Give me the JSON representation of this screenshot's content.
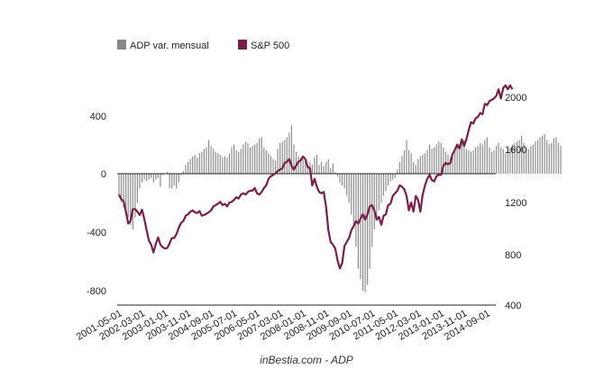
{
  "chart_data": {
    "type": "bar",
    "credit": "inBestia.com - ADP",
    "legend_position": "top-left",
    "grid": false,
    "x": {
      "start": "2001-05",
      "end": "2014-12",
      "tick_labels": [
        "2001-05-01",
        "2002-03-01",
        "2003-01-01",
        "2003-11-01",
        "2004-09-01",
        "2005-07-01",
        "2006-05-01",
        "2007-03-01",
        "2008-01-01",
        "2008-11-01",
        "2009-09-01",
        "2010-07-01",
        "2011-05-01",
        "2012-03-01",
        "2013-01-01",
        "2013-11-01",
        "2014-09-01"
      ]
    },
    "y_left": {
      "ylim": [
        -900,
        450
      ],
      "ticks": [
        400,
        0,
        -400,
        -800
      ],
      "tick_labels": [
        "400",
        "0",
        "-400",
        "-800"
      ]
    },
    "y_right": {
      "ylim": [
        400,
        2100
      ],
      "ticks": [
        2000,
        1600,
        1200,
        800,
        400
      ],
      "tick_labels": [
        "2000",
        "1600",
        "1200",
        "800",
        "400"
      ]
    },
    "series": [
      {
        "name": "ADP var. mensual",
        "kind": "bar",
        "axis": "left",
        "color": "#888888",
        "start": "2001-05",
        "values": [
          -160,
          -200,
          -230,
          -260,
          -300,
          -350,
          -380,
          -300,
          -200,
          -100,
          -60,
          -40,
          -50,
          -40,
          -30,
          -60,
          -40,
          -30,
          -90,
          -10,
          0,
          10,
          -100,
          -100,
          -80,
          -100,
          -60,
          -10,
          20,
          60,
          80,
          100,
          120,
          130,
          110,
          140,
          150,
          170,
          180,
          230,
          190,
          170,
          150,
          140,
          130,
          110,
          120,
          110,
          140,
          180,
          200,
          160,
          150,
          170,
          200,
          220,
          210,
          180,
          190,
          200,
          210,
          240,
          250,
          180,
          160,
          140,
          120,
          100,
          90,
          170,
          210,
          220,
          230,
          250,
          280,
          330,
          200,
          150,
          120,
          110,
          100,
          90,
          60,
          80,
          60,
          110,
          130,
          60,
          80,
          50,
          80,
          100,
          40,
          70,
          10,
          -20,
          -60,
          -80,
          -100,
          -150,
          -200,
          -280,
          -350,
          -500,
          -650,
          -720,
          -800,
          -810,
          -760,
          -650,
          -500,
          -380,
          -300,
          -250,
          -200,
          -150,
          -120,
          -80,
          -50,
          -40,
          -30,
          30,
          80,
          120,
          160,
          230,
          160,
          140,
          80,
          60,
          100,
          120,
          130,
          140,
          160,
          200,
          170,
          180,
          200,
          220,
          210,
          180,
          150,
          130,
          110,
          140,
          180,
          190,
          200,
          220,
          230,
          170,
          160,
          150,
          160,
          180,
          190,
          210,
          200,
          230,
          250,
          180,
          150,
          160,
          190,
          210,
          180,
          170,
          140,
          160,
          180,
          200,
          210,
          220,
          230,
          260,
          210,
          180,
          170,
          190,
          200,
          220,
          230,
          250,
          260,
          270,
          230,
          200,
          210,
          240,
          250,
          210,
          190
        ],
        "note": ""
      },
      {
        "name": "S&P 500",
        "kind": "line",
        "axis": "right",
        "color": "#7a1e4a",
        "start": "2001-05",
        "values": [
          1260,
          1225,
          1210,
          1130,
          1040,
          1060,
          1150,
          1150,
          1130,
          1105,
          1145,
          1075,
          990,
          910,
          880,
          820,
          885,
          935,
          880,
          860,
          850,
          855,
          890,
          930,
          930,
          960,
          1010,
          1045,
          1060,
          1100,
          1110,
          1130,
          1140,
          1125,
          1120,
          1135,
          1100,
          1105,
          1115,
          1125,
          1140,
          1170,
          1180,
          1190,
          1205,
          1180,
          1190,
          1170,
          1200,
          1205,
          1220,
          1240,
          1230,
          1260,
          1270,
          1260,
          1280,
          1290,
          1290,
          1310,
          1270,
          1260,
          1280,
          1310,
          1330,
          1380,
          1400,
          1410,
          1420,
          1440,
          1450,
          1460,
          1500,
          1510,
          1530,
          1480,
          1450,
          1480,
          1510,
          1520,
          1550,
          1530,
          1470,
          1460,
          1330,
          1380,
          1320,
          1280,
          1270,
          1280,
          1170,
          990,
          900,
          880,
          850,
          760,
          700,
          740,
          870,
          900,
          930,
          990,
          1020,
          1060,
          1040,
          1080,
          1110,
          1070,
          1110,
          1170,
          1180,
          1140,
          1070,
          1090,
          1030,
          1100,
          1110,
          1180,
          1190,
          1250,
          1270,
          1290,
          1330,
          1320,
          1300,
          1250,
          1140,
          1200,
          1130,
          1250,
          1220,
          1130,
          1260,
          1330,
          1380,
          1410,
          1370,
          1360,
          1400,
          1410,
          1410,
          1480,
          1500,
          1490,
          1500,
          1570,
          1600,
          1640,
          1610,
          1680,
          1630,
          1680,
          1750,
          1810,
          1800,
          1840,
          1850,
          1880,
          1870,
          1950,
          1940,
          1970,
          1980,
          1990,
          2010,
          2060,
          1990,
          2070,
          2090,
          2060,
          2090,
          2060
        ]
      }
    ]
  }
}
